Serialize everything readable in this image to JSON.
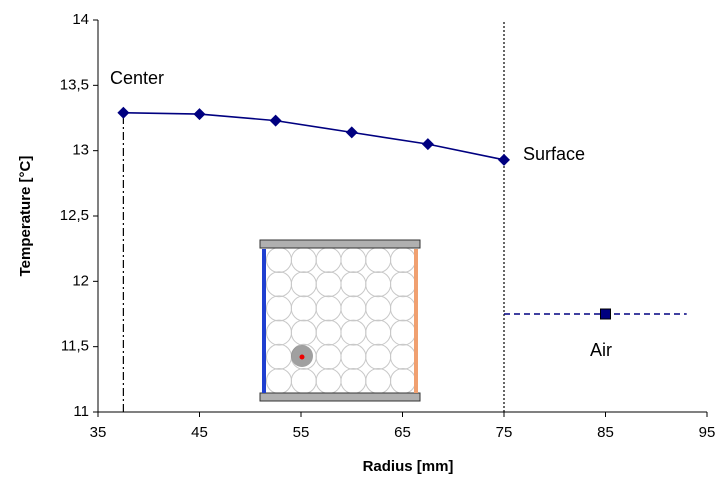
{
  "chart_data": {
    "type": "line",
    "x_label": "Radius [mm]",
    "y_label": "Temperature [°C]",
    "xlim": [
      35,
      95
    ],
    "xticks": [
      35,
      45,
      55,
      65,
      75,
      85,
      95
    ],
    "ylim": [
      11,
      14
    ],
    "yticks": [
      {
        "value": 11,
        "label": "11"
      },
      {
        "value": 11.5,
        "label": "11,5"
      },
      {
        "value": 12,
        "label": "12"
      },
      {
        "value": 12.5,
        "label": "12,5"
      },
      {
        "value": 13,
        "label": "13"
      },
      {
        "value": 13.5,
        "label": "13,5"
      },
      {
        "value": 14,
        "label": "14"
      }
    ],
    "grid": false,
    "series": [
      {
        "color": "#000080",
        "marker": "diamond",
        "dash": "solid",
        "x": [
          37.5,
          45,
          52.5,
          60,
          67.5,
          75
        ],
        "values": [
          13.29,
          13.28,
          13.23,
          13.14,
          13.05,
          12.93
        ]
      },
      {
        "color": "#000080",
        "marker": "none",
        "dash": "dashed",
        "x": [
          75,
          93
        ],
        "values": [
          11.75,
          11.75
        ]
      },
      {
        "color": "#000080",
        "marker": "square",
        "dash": "none",
        "x": [
          85
        ],
        "values": [
          11.75
        ]
      }
    ],
    "vlines": [
      {
        "x": 37.5,
        "top": 13.29,
        "dash": "dashdot"
      },
      {
        "x": 75,
        "top": 14,
        "dash": "dotted"
      }
    ],
    "annotations": [
      "Center",
      "Surface",
      "Air"
    ]
  }
}
